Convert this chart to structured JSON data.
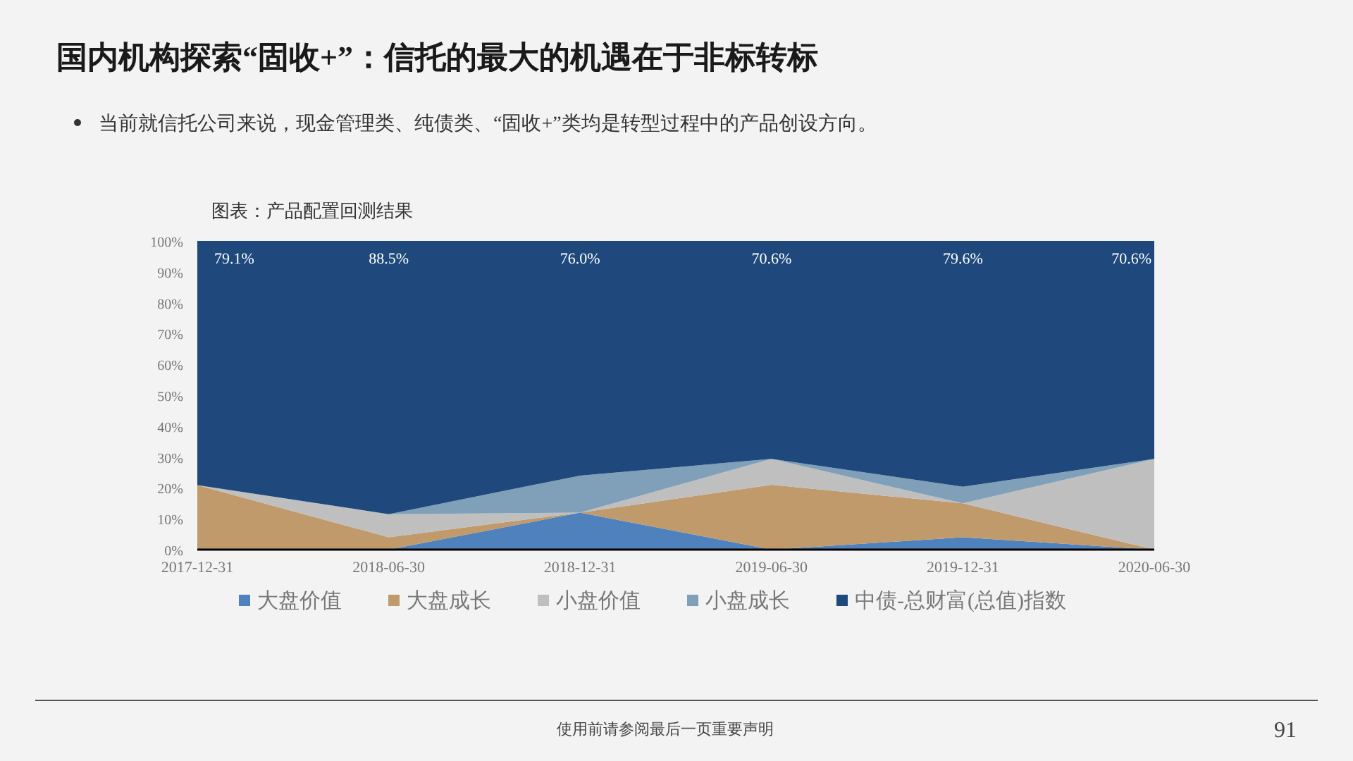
{
  "chart_data": {
    "type": "area",
    "stacked": true,
    "title": "国内机构探索“固收+”：信托的最大的机遇在于非标转标",
    "subtitle": "当前就信托公司来说，现金管理类、纯债类、“固收+”类均是转型过程中的产品创设方向。",
    "annotations": [
      "图表：产品配置回测结果",
      "使用前请参阅最后一页重要声明",
      "91"
    ],
    "categories": [
      "2017-12-31",
      "2018-06-30",
      "2018-12-31",
      "2019-06-30",
      "2019-12-31",
      "2020-06-30"
    ],
    "ylim": [
      0,
      100
    ],
    "yticks": [
      {
        "value": 0,
        "label": "0%"
      },
      {
        "value": 10,
        "label": "10%"
      },
      {
        "value": 20,
        "label": "20%"
      },
      {
        "value": 30,
        "label": "30%"
      },
      {
        "value": 40,
        "label": "40%"
      },
      {
        "value": 50,
        "label": "50%"
      },
      {
        "value": 60,
        "label": "60%"
      },
      {
        "value": 70,
        "label": "70%"
      },
      {
        "value": 80,
        "label": "80%"
      },
      {
        "value": 90,
        "label": "90%"
      },
      {
        "value": 100,
        "label": "100%"
      }
    ],
    "grid": false,
    "legend": "bottom",
    "series": [
      {
        "name": "大盘价值",
        "color": "#4f81bd",
        "values": [
          0,
          0,
          12,
          0,
          4,
          0
        ]
      },
      {
        "name": "大盘成长",
        "color": "#c09a6b",
        "values": [
          20.9,
          4,
          0,
          21,
          11,
          0
        ]
      },
      {
        "name": "小盘价值",
        "color": "#bfbfbf",
        "values": [
          0,
          7.5,
          0,
          8.4,
          0,
          29.4
        ]
      },
      {
        "name": "小盘成长",
        "color": "#7fa0b8",
        "values": [
          0,
          0,
          12,
          0,
          5.4,
          0
        ]
      },
      {
        "name": "中债-总财富(总值)指数",
        "color": "#1f497d",
        "values": [
          79.1,
          88.5,
          76.0,
          70.6,
          79.6,
          70.6
        ],
        "value_labels": [
          "79.1%",
          "88.5%",
          "76.0%",
          "70.6%",
          "79.6%",
          "70.6%"
        ]
      }
    ]
  }
}
